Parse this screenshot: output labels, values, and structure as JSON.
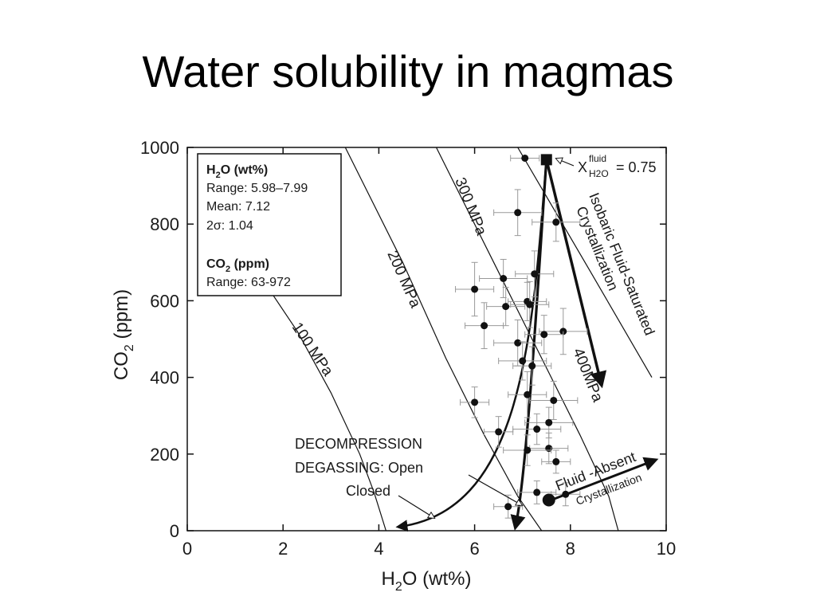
{
  "slide": {
    "title": "Water solubility in magmas"
  },
  "chart_data": {
    "type": "scatter",
    "xlabel": "H2O (wt%)",
    "ylabel": "CO2 (ppm)",
    "xlim": [
      0,
      10
    ],
    "ylim": [
      0,
      1000
    ],
    "x_ticks": [
      "0",
      "2",
      "4",
      "6",
      "8",
      "10"
    ],
    "y_ticks": [
      "0",
      "200",
      "400",
      "600",
      "800",
      "1000"
    ],
    "grid": false,
    "isobars": [
      {
        "label": "100 MPa",
        "points": [
          [
            1.6,
            650
          ],
          [
            2.3,
            520
          ],
          [
            3.0,
            360
          ],
          [
            3.6,
            200
          ],
          [
            3.9,
            100
          ],
          [
            4.15,
            0
          ]
        ]
      },
      {
        "label": "200 MPa",
        "points": [
          [
            3.3,
            1000
          ],
          [
            4.5,
            700
          ],
          [
            5.4,
            450
          ],
          [
            6.2,
            250
          ],
          [
            6.9,
            90
          ],
          [
            7.4,
            0
          ]
        ]
      },
      {
        "label": "300 MPa",
        "points": [
          [
            5.2,
            1000
          ],
          [
            6.4,
            700
          ],
          [
            7.4,
            450
          ],
          [
            8.2,
            250
          ],
          [
            8.8,
            90
          ],
          [
            9.0,
            0
          ]
        ]
      },
      {
        "label": "400MPa",
        "points": [
          [
            6.9,
            1000
          ],
          [
            8.4,
            680
          ],
          [
            9.7,
            400
          ]
        ]
      }
    ],
    "points": [
      {
        "x": 7.05,
        "y": 972,
        "ex": 0.3,
        "ey": 0
      },
      {
        "x": 6.9,
        "y": 830,
        "ex": 0.5,
        "ey": 60
      },
      {
        "x": 7.7,
        "y": 805,
        "ex": 0.5,
        "ey": 50
      },
      {
        "x": 7.25,
        "y": 670,
        "ex": 0.4,
        "ey": 60
      },
      {
        "x": 6.6,
        "y": 658,
        "ex": 0.5,
        "ey": 50
      },
      {
        "x": 6.0,
        "y": 630,
        "ex": 0.4,
        "ey": 70
      },
      {
        "x": 6.65,
        "y": 585,
        "ex": 0.4,
        "ey": 50
      },
      {
        "x": 7.1,
        "y": 598,
        "ex": 0.4,
        "ey": 50
      },
      {
        "x": 7.15,
        "y": 590,
        "ex": 0.4,
        "ey": 60
      },
      {
        "x": 6.2,
        "y": 535,
        "ex": 0.4,
        "ey": 60
      },
      {
        "x": 7.85,
        "y": 520,
        "ex": 0.5,
        "ey": 60
      },
      {
        "x": 7.45,
        "y": 512,
        "ex": 0.4,
        "ey": 50
      },
      {
        "x": 6.9,
        "y": 490,
        "ex": 0.5,
        "ey": 60
      },
      {
        "x": 7.0,
        "y": 443,
        "ex": 0.5,
        "ey": 50
      },
      {
        "x": 7.2,
        "y": 430,
        "ex": 0.4,
        "ey": 50
      },
      {
        "x": 7.1,
        "y": 355,
        "ex": 0.4,
        "ey": 60
      },
      {
        "x": 7.65,
        "y": 340,
        "ex": 0.5,
        "ey": 50
      },
      {
        "x": 6.0,
        "y": 335,
        "ex": 0.3,
        "ey": 40
      },
      {
        "x": 7.55,
        "y": 282,
        "ex": 0.5,
        "ey": 40
      },
      {
        "x": 7.3,
        "y": 265,
        "ex": 0.5,
        "ey": 40
      },
      {
        "x": 6.5,
        "y": 258,
        "ex": 0.3,
        "ey": 40
      },
      {
        "x": 7.55,
        "y": 215,
        "ex": 0.4,
        "ey": 40
      },
      {
        "x": 7.1,
        "y": 210,
        "ex": 0.5,
        "ey": 40
      },
      {
        "x": 7.7,
        "y": 180,
        "ex": 0.3,
        "ey": 30
      },
      {
        "x": 7.3,
        "y": 100,
        "ex": 0.4,
        "ey": 30
      },
      {
        "x": 7.9,
        "y": 95,
        "ex": 0.3,
        "ey": 30
      },
      {
        "x": 6.7,
        "y": 63,
        "ex": 0.3,
        "ey": 30
      }
    ],
    "large_points": [
      {
        "x": 7.55,
        "y": 80
      }
    ],
    "start_marker": {
      "x": 7.5,
      "y": 968
    },
    "annotations": {
      "xfluid": "X",
      "xfluid_sup": "fluid",
      "xfluid_sub": "H2O",
      "xfluid_value": "= 0.75",
      "isobaric_line1": "Isobaric Fluid-Saturated",
      "isobaric_line2": "Crystallization",
      "decompression_line1": "DECOMPRESSION",
      "decompression_line2": "DEGASSING:  Open",
      "decompression_line3": "Closed",
      "fluid_absent_line1": "Fluid -Absent",
      "fluid_absent_line2": "Crystallization"
    },
    "stats_box": {
      "h2o_title": "H",
      "h2o_title_sub": "2",
      "h2o_title_rest": "O (wt%)",
      "h2o_range": "Range: 5.98–7.99",
      "h2o_mean": "Mean:  7.12",
      "h2o_sigma": "2σ:  1.04",
      "co2_title": "CO",
      "co2_title_sub": "2",
      "co2_title_rest": " (ppm)",
      "co2_range": "Range: 63-972"
    },
    "axis_text": {
      "x_main": "H",
      "x_sub": "2",
      "x_rest": "O (wt%)",
      "y_main": "CO",
      "y_sub": "2",
      "y_rest": " (ppm)"
    }
  }
}
